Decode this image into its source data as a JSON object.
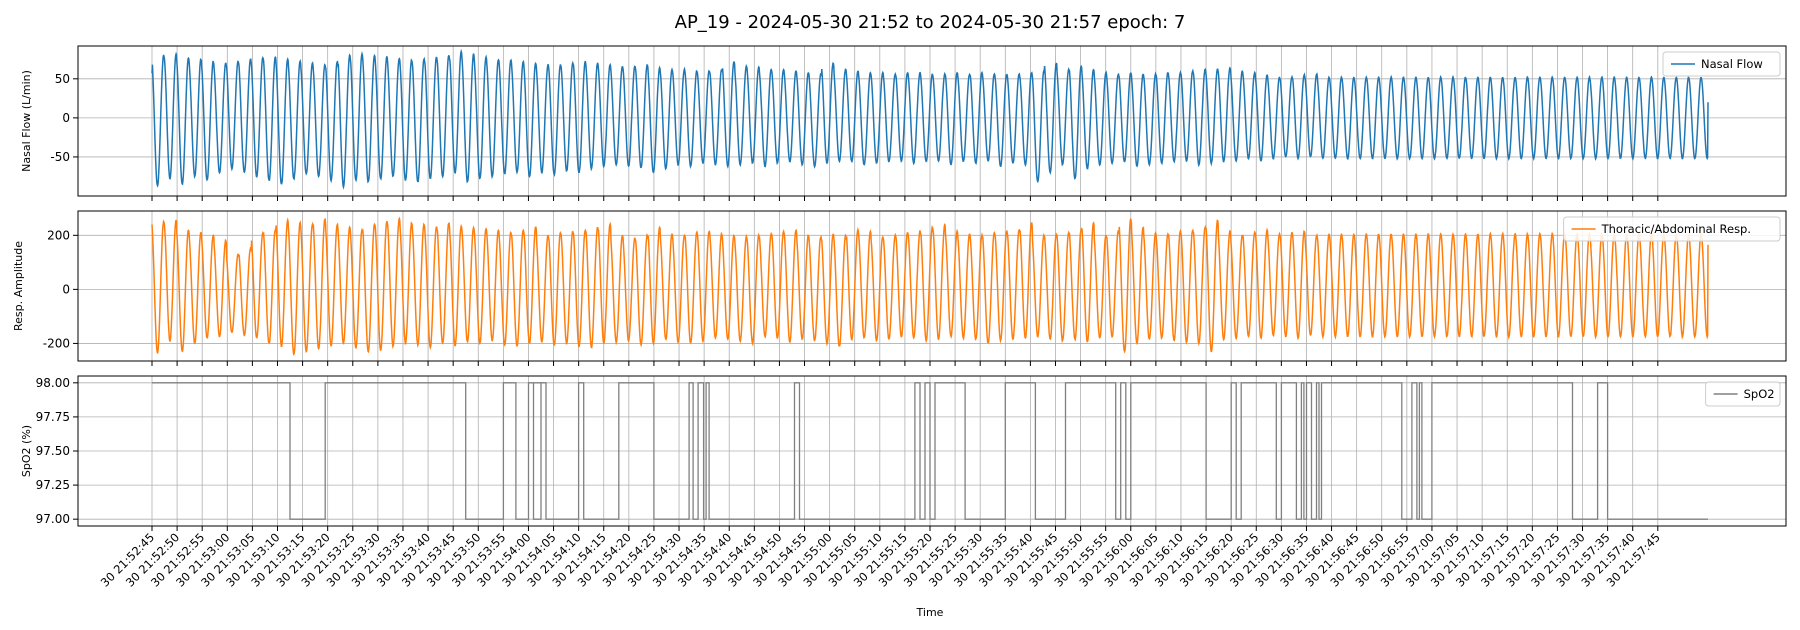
{
  "figure": {
    "title": "AP_19 - 2024-05-30 21:52 to 2024-05-30 21:57 epoch: 7",
    "xlabel": "Time"
  },
  "chart_data": [
    {
      "type": "line",
      "ylabel": "Nasal Flow (L/min)",
      "ylim": [
        -100,
        92
      ],
      "yticks": [
        -50,
        0,
        50
      ],
      "grid": true,
      "legend": "top-right",
      "series": [
        {
          "name": "Nasal Flow",
          "color": "#1f77b4",
          "description_params": {
            "breath_period_s": 2.47,
            "start_value": 57,
            "end_value": 20,
            "peaks": [
              80,
              82,
              77,
              75,
              72,
              70,
              73,
              75,
              77,
              78,
              75,
              72,
              70,
              68,
              72,
              80,
              82,
              80,
              78,
              76,
              74,
              75,
              78,
              80,
              85,
              82,
              78,
              75,
              74,
              72,
              70,
              68,
              68,
              70,
              72,
              70,
              68,
              66,
              66,
              68,
              64,
              62,
              62,
              60,
              60,
              62,
              72,
              66,
              65,
              62,
              62,
              60,
              58,
              56,
              70,
              62,
              60,
              58,
              58,
              56,
              58,
              58,
              56,
              56,
              58,
              56,
              58,
              56,
              56,
              56,
              58,
              60,
              70,
              62,
              66,
              62,
              58,
              56,
              58,
              56,
              56,
              58,
              58,
              60,
              62,
              62,
              64,
              60,
              58,
              55,
              52,
              52,
              55,
              56,
              52
            ],
            "troughs": [
              -87,
              -78,
              -85,
              -75,
              -80,
              -70,
              -65,
              -70,
              -75,
              -80,
              -85,
              -78,
              -72,
              -75,
              -80,
              -88,
              -80,
              -82,
              -78,
              -75,
              -80,
              -82,
              -78,
              -75,
              -70,
              -82,
              -78,
              -75,
              -72,
              -70,
              -75,
              -70,
              -72,
              -68,
              -70,
              -65,
              -62,
              -60,
              -62,
              -64,
              -70,
              -65,
              -60,
              -62,
              -58,
              -60,
              -62,
              -60,
              -58,
              -62,
              -58,
              -56,
              -60,
              -62,
              -58,
              -55,
              -56,
              -60,
              -58,
              -56,
              -55,
              -58,
              -56,
              -55,
              -60,
              -56,
              -58,
              -55,
              -62,
              -58,
              -60,
              -82,
              -70,
              -60,
              -78,
              -65,
              -60,
              -58,
              -56,
              -62,
              -60,
              -58,
              -56,
              -55,
              -60,
              -58,
              -56,
              -55,
              -52,
              -55,
              -52,
              -50,
              -52,
              -50,
              -52
            ]
          }
        }
      ]
    },
    {
      "type": "line",
      "ylabel": "Resp. Amplitude",
      "ylim": [
        -265,
        290
      ],
      "yticks": [
        -200,
        0,
        200
      ],
      "grid": true,
      "legend": "top-right",
      "series": [
        {
          "name": "Thoracic/Abdominal Resp.",
          "color": "#ff7f0e",
          "description_params": {
            "breath_period_s": 2.47,
            "start_value": 240,
            "end_value": 165,
            "peaks": [
              250,
              255,
              220,
              210,
              200,
              180,
              130,
              150,
              210,
              220,
              255,
              245,
              240,
              260,
              240,
              230,
              220,
              240,
              250,
              260,
              245,
              240,
              230,
              245,
              235,
              230,
              225,
              220,
              210,
              220,
              230,
              200,
              210,
              215,
              220,
              230,
              240,
              200,
              190,
              200,
              230,
              205,
              200,
              210,
              215,
              205,
              200,
              195,
              200,
              205,
              215,
              220,
              200,
              195,
              205,
              200,
              220,
              215,
              195,
              200,
              210,
              215,
              230,
              240,
              215,
              205,
              200,
              210,
              215,
              220,
              245,
              200,
              205,
              210,
              220,
              245,
              200,
              215,
              260,
              230,
              210,
              205,
              215,
              220,
              230,
              255,
              215,
              200,
              210,
              220,
              205,
              210,
              215,
              200,
              205
            ],
            "troughs": [
              -235,
              -190,
              -230,
              -200,
              -180,
              -175,
              -160,
              -170,
              -180,
              -200,
              -210,
              -240,
              -230,
              -220,
              -210,
              -200,
              -215,
              -230,
              -225,
              -210,
              -200,
              -205,
              -215,
              -200,
              -210,
              -195,
              -200,
              -190,
              -205,
              -210,
              -200,
              -195,
              -205,
              -200,
              -210,
              -215,
              -200,
              -195,
              -190,
              -205,
              -200,
              -185,
              -195,
              -200,
              -190,
              -180,
              -185,
              -190,
              -200,
              -175,
              -180,
              -195,
              -185,
              -190,
              -200,
              -210,
              -185,
              -180,
              -190,
              -185,
              -175,
              -180,
              -190,
              -185,
              -175,
              -180,
              -185,
              -200,
              -190,
              -185,
              -180,
              -175,
              -185,
              -190,
              -185,
              -195,
              -180,
              -175,
              -230,
              -200,
              -185,
              -180,
              -190,
              -195,
              -200,
              -230,
              -185,
              -180,
              -175,
              -180,
              -170,
              -175,
              -180,
              -170,
              -175
            ]
          }
        }
      ]
    },
    {
      "type": "line",
      "ylabel": "SpO2 (%)",
      "ylim": [
        96.95,
        98.05
      ],
      "yticks": [
        97.0,
        97.25,
        97.5,
        97.75,
        98.0
      ],
      "ytick_labels": [
        "97.00",
        "97.25",
        "97.50",
        "97.75",
        "98.00"
      ],
      "grid": true,
      "legend": "top-right",
      "series": [
        {
          "name": "SpO2",
          "color": "#808080",
          "step": true,
          "start_value": 98,
          "transitions_s": [
            27.5,
            34.5,
            62.5,
            70,
            72.5,
            75,
            77.5,
            76,
            78.5,
            85,
            86,
            93,
            100,
            107,
            107.8,
            108.8,
            109.9,
            110.4,
            111,
            128,
            129,
            152,
            153,
            154,
            155,
            156,
            162,
            170,
            176,
            182,
            192,
            193,
            194,
            195,
            210,
            215,
            216,
            217,
            224,
            225,
            228,
            229,
            229.5,
            230,
            231,
            232,
            232.5,
            233,
            249,
            251,
            252,
            252.5,
            253,
            255,
            283,
            288,
            290
          ]
        }
      ]
    }
  ],
  "time_axis": {
    "start_s": 0,
    "end_s": 315,
    "tick_step_s": 5,
    "tick_labels": [
      "30 21:52:45",
      "30 21:52:50",
      "30 21:52:55",
      "30 21:53:00",
      "30 21:53:05",
      "30 21:53:10",
      "30 21:53:15",
      "30 21:53:20",
      "30 21:53:25",
      "30 21:53:30",
      "30 21:53:35",
      "30 21:53:40",
      "30 21:53:45",
      "30 21:53:50",
      "30 21:53:55",
      "30 21:54:00",
      "30 21:54:05",
      "30 21:54:10",
      "30 21:54:15",
      "30 21:54:20",
      "30 21:54:25",
      "30 21:54:30",
      "30 21:54:35",
      "30 21:54:40",
      "30 21:54:45",
      "30 21:54:50",
      "30 21:54:55",
      "30 21:55:00",
      "30 21:55:05",
      "30 21:55:10",
      "30 21:55:15",
      "30 21:55:20",
      "30 21:55:25",
      "30 21:55:30",
      "30 21:55:35",
      "30 21:55:40",
      "30 21:55:45",
      "30 21:55:50",
      "30 21:55:55",
      "30 21:56:00",
      "30 21:56:05",
      "30 21:56:10",
      "30 21:56:15",
      "30 21:56:20",
      "30 21:56:25",
      "30 21:56:30",
      "30 21:56:35",
      "30 21:56:40",
      "30 21:56:45",
      "30 21:56:50",
      "30 21:56:55",
      "30 21:57:00",
      "30 21:57:05",
      "30 21:57:10",
      "30 21:57:15",
      "30 21:57:20",
      "30 21:57:25",
      "30 21:57:30",
      "30 21:57:35",
      "30 21:57:40",
      "30 21:57:45"
    ]
  }
}
